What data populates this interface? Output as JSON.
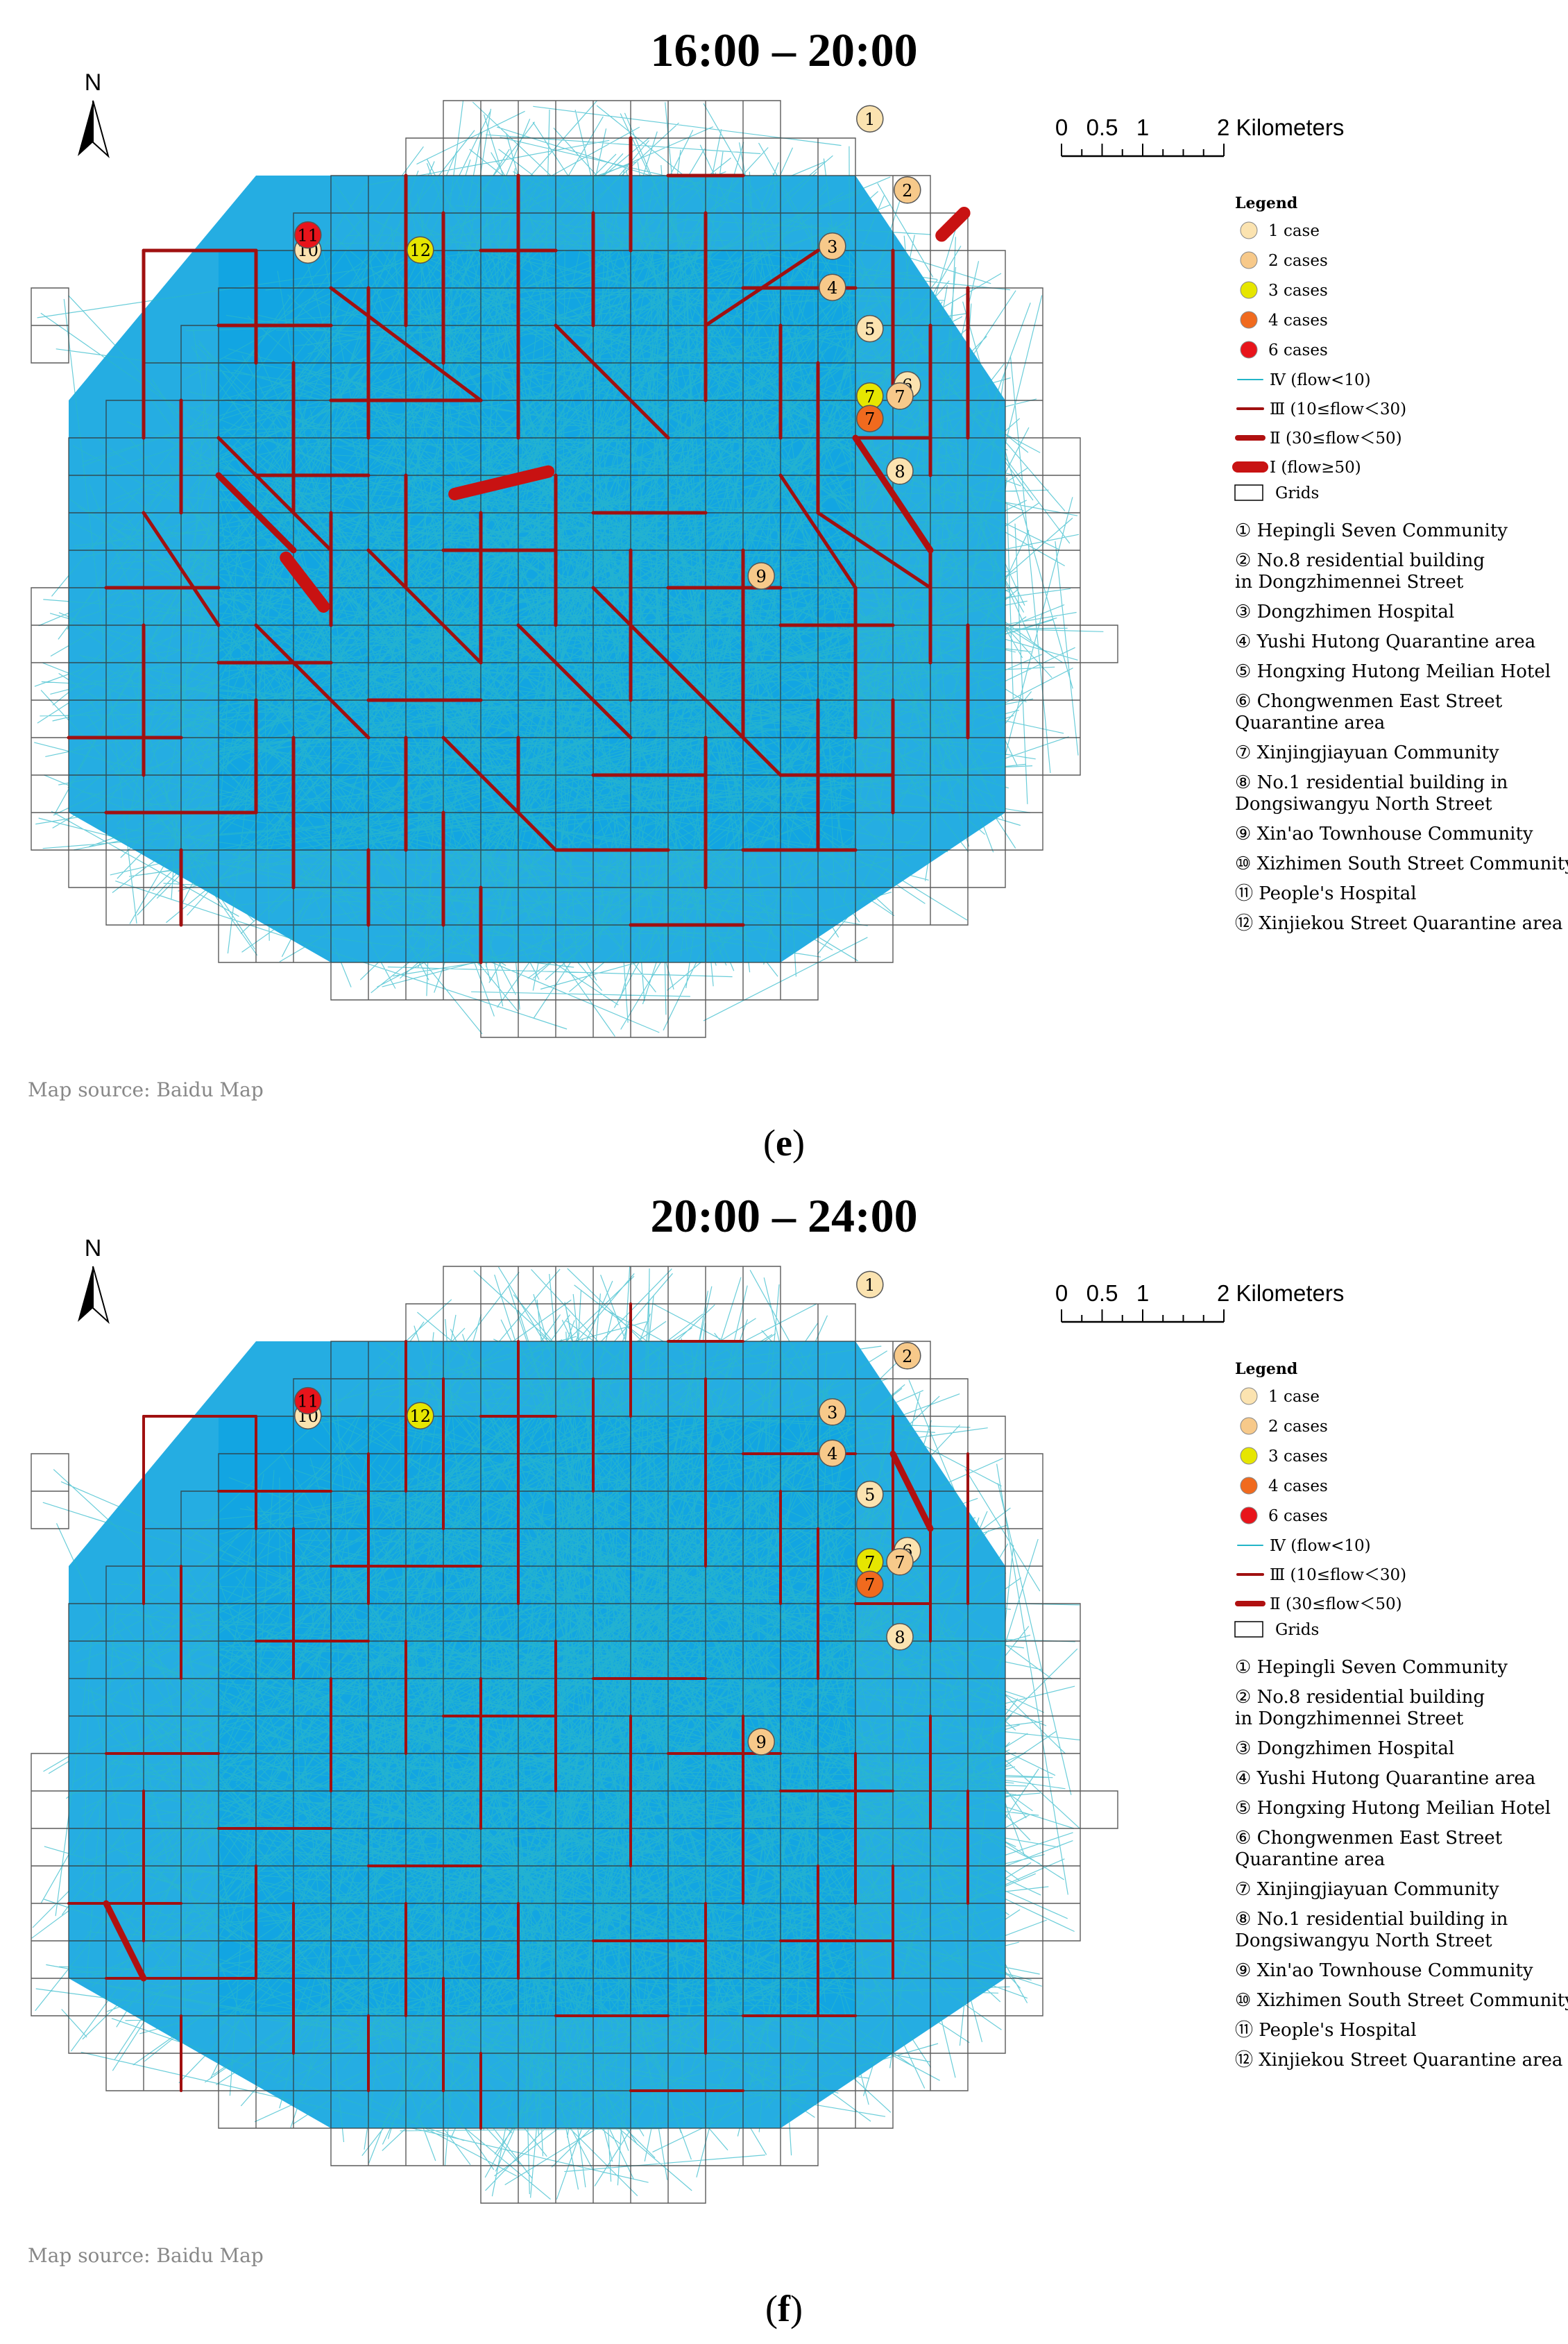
{
  "panels": [
    {
      "id": "e",
      "title": "16:00 – 20:00",
      "panel_label": "(e)",
      "panel_label_letter": "e",
      "legend": {
        "title": "Legend",
        "cases": [
          {
            "label": "1 case",
            "color": "#fbe3b0"
          },
          {
            "label": "2 cases",
            "color": "#f7c98a"
          },
          {
            "label": "3 cases",
            "color": "#e6e600"
          },
          {
            "label": "4 cases",
            "color": "#f06a1e"
          },
          {
            "label": "6 cases",
            "color": "#e8141b"
          }
        ],
        "flows": [
          {
            "label": "Ⅳ (flow<10)",
            "color": "#23b5c8",
            "width": 2
          },
          {
            "label": "Ⅲ (10≤flow＜30)",
            "color": "#a01010",
            "width": 4
          },
          {
            "label": "Ⅱ (30≤flow＜50)",
            "color": "#b01010",
            "width": 8
          },
          {
            "label": "Ⅰ (flow≥50)",
            "color": "#c81212",
            "width": 16
          }
        ],
        "grid_label": "Grids"
      }
    },
    {
      "id": "f",
      "title": "20:00 – 24:00",
      "panel_label": "(f)",
      "panel_label_letter": "f",
      "legend": {
        "title": "Legend",
        "cases": [
          {
            "label": "1 case",
            "color": "#fbe3b0"
          },
          {
            "label": "2 cases",
            "color": "#f7c98a"
          },
          {
            "label": "3 cases",
            "color": "#e6e600"
          },
          {
            "label": "4 cases",
            "color": "#f06a1e"
          },
          {
            "label": "6 cases",
            "color": "#e8141b"
          }
        ],
        "flows": [
          {
            "label": "Ⅳ (flow<10)",
            "color": "#23b5c8",
            "width": 2
          },
          {
            "label": "Ⅲ (10≤flow＜30)",
            "color": "#a01010",
            "width": 4
          },
          {
            "label": "Ⅱ (30≤flow＜50)",
            "color": "#b01010",
            "width": 8
          }
        ],
        "grid_label": "Grids"
      }
    }
  ],
  "north_label": "N",
  "scale_bar": {
    "ticks": [
      "0",
      "0.5",
      "1",
      "2 Kilometers"
    ]
  },
  "map_source": "Map source: Baidu Map",
  "sites": [
    "① Hepingli Seven Community",
    "② No.8 residential building\nin Dongzhimennei Street",
    "③ Dongzhimen Hospital",
    "④ Yushi Hutong Quarantine area",
    "⑤ Hongxing Hutong Meilian Hotel",
    "⑥ Chongwenmen East Street\nQuarantine area",
    "⑦ Xinjingjiayuan Community",
    "⑧ No.1 residential building in\nDongsiwangyu North Street",
    "⑨ Xin'ao Townhouse Community",
    "⑩  Xizhimen South Street Community",
    "⑪ People's Hospital",
    "⑫ Xinjiekou Street Quarantine area"
  ],
  "markers": [
    {
      "label": "1",
      "cases": 1
    },
    {
      "label": "2",
      "cases": 2
    },
    {
      "label": "3",
      "cases": 2
    },
    {
      "label": "4",
      "cases": 2
    },
    {
      "label": "5",
      "cases": 1
    },
    {
      "label": "6",
      "cases": 1
    },
    {
      "label": "7",
      "cases": 3
    },
    {
      "label": "7",
      "cases": 2
    },
    {
      "label": "7",
      "cases": 4
    },
    {
      "label": "8",
      "cases": 1
    },
    {
      "label": "9",
      "cases": 2
    },
    {
      "label": "10",
      "cases": 1
    },
    {
      "label": "11",
      "cases": 6
    },
    {
      "label": "12",
      "cases": 3
    }
  ]
}
